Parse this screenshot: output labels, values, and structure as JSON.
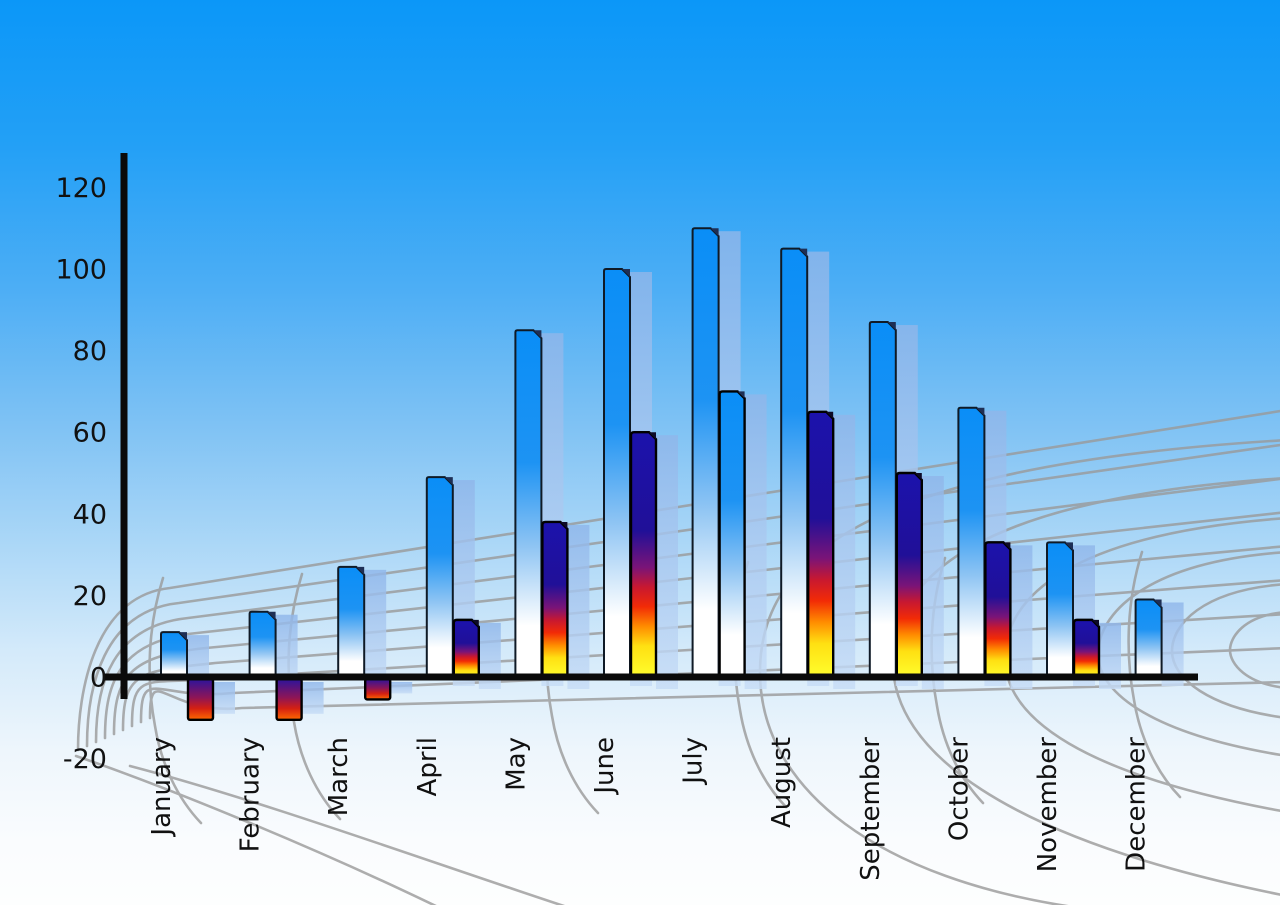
{
  "figure": {
    "kind": "decorative 3d bar chart",
    "title": "",
    "legend": "none"
  },
  "y_axis": {
    "tick_values": [
      120,
      100,
      80,
      60,
      40,
      20,
      0,
      -20
    ],
    "tick_labels": [
      "120",
      "100",
      "80",
      "60",
      "40",
      "20",
      "0",
      "-20"
    ]
  },
  "x_axis": {
    "labels": [
      "January",
      "February",
      "March",
      "April",
      "May",
      "June",
      "July",
      "August",
      "September",
      "October",
      "November",
      "December"
    ]
  },
  "chart_data": {
    "type": "bar",
    "categories": [
      "January",
      "February",
      "March",
      "April",
      "May",
      "June",
      "July",
      "August",
      "September",
      "October",
      "November",
      "December"
    ],
    "series": [
      {
        "name": "primary-blue-bars",
        "values": [
          11,
          16,
          27,
          49,
          85,
          100,
          110,
          105,
          87,
          66,
          33,
          19
        ]
      },
      {
        "name": "secondary-gradient-bars",
        "values": [
          -10,
          -10,
          -5,
          14,
          38,
          60,
          70,
          65,
          50,
          33,
          14,
          null
        ]
      }
    ],
    "secondary_bar_styles": [
      "heat",
      "heat",
      "heat",
      "heat",
      "heat",
      "heat",
      "blue",
      "heat",
      "heat",
      "heat",
      "heat",
      null
    ],
    "title": "",
    "xlabel": "",
    "ylabel": "",
    "ylim": [
      -20,
      120
    ],
    "grid": "decorative curved perspective mesh",
    "legend_position": "none"
  },
  "colors": {
    "sky_top": "#0b97f8",
    "sky_bottom": "#fdfefe",
    "bar_blue_top": "#0a8ef7",
    "bar_fade_bottom": "#ffffff",
    "slab_light_blue": "#8fb6ea",
    "heat_navy": "#1c12ac",
    "heat_red": "#e31312",
    "heat_orange": "#ff8c00",
    "heat_yellow": "#ffff2e",
    "negative_top_navy": "#2c149c",
    "negative_bottom_orange": "#ff6a00",
    "axis_black": "#0a0a0a",
    "grid_gray": "#9a9a9a",
    "label_color": "#111111"
  }
}
